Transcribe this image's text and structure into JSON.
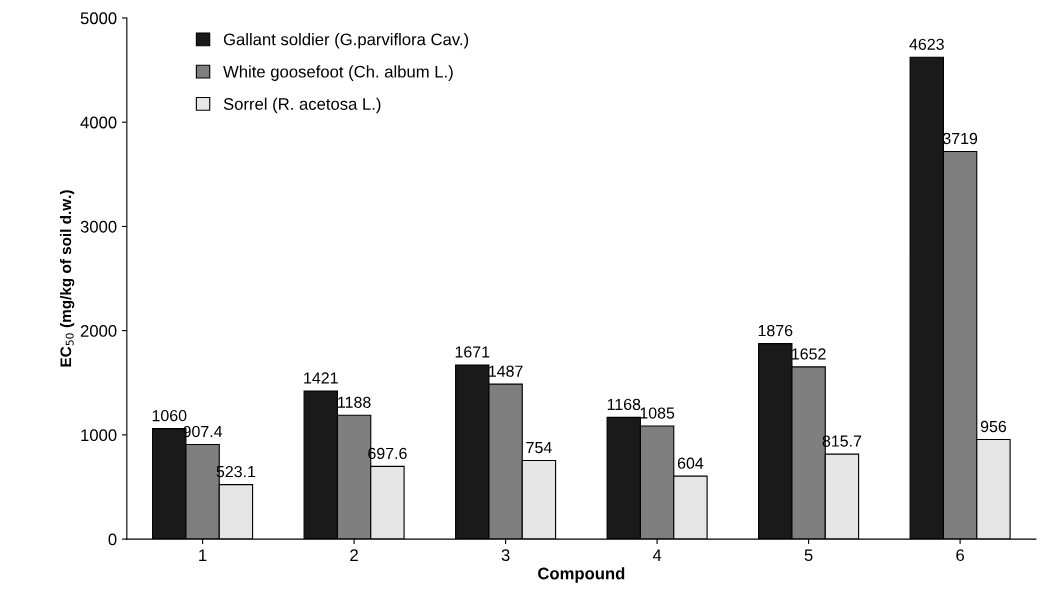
{
  "chart_data": {
    "type": "bar",
    "xlabel": "Compound",
    "ylabel": "EC$_{50}$ (mg/kg of soil d.w.)",
    "categories": [
      "1",
      "2",
      "3",
      "4",
      "5",
      "6"
    ],
    "series": [
      {
        "name": "Gallant soldier (G.parviflora Cav.)",
        "color": "#1a1a1a",
        "values": [
          1060,
          1421,
          1671,
          1168,
          1876,
          4623
        ]
      },
      {
        "name": "White goosefoot (Ch. album L.)",
        "color": "#7f7f7f",
        "values": [
          907.4,
          1188,
          1487,
          1085,
          1652,
          3719
        ]
      },
      {
        "name": "Sorrel (R. acetosa L.)",
        "color": "#e6e6e6",
        "values": [
          523.1,
          697.6,
          754,
          604,
          815.7,
          956
        ]
      }
    ],
    "ylim": [
      0,
      5000
    ],
    "yticks": [
      0,
      1000,
      2000,
      3000,
      4000,
      5000
    ],
    "data_labels": true,
    "legend": "top left",
    "grid": false
  }
}
